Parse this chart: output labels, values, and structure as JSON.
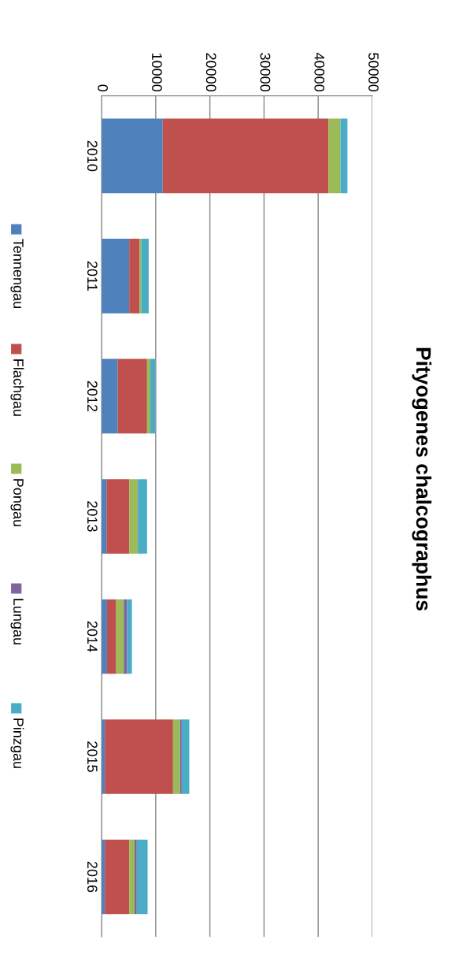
{
  "chart_data": {
    "type": "bar",
    "title": "Pityogenes chalcographus",
    "orientation": "horizontal",
    "stacked": true,
    "categories": [
      "2010",
      "2011",
      "2012",
      "2013",
      "2014",
      "2015",
      "2016"
    ],
    "series": [
      {
        "name": "Tennengau",
        "color": "#4f81bd",
        "values": [
          11300,
          5100,
          3000,
          900,
          1000,
          600,
          600
        ]
      },
      {
        "name": "Flachgau",
        "color": "#c0504d",
        "values": [
          30600,
          1900,
          5400,
          4200,
          1700,
          12600,
          4500
        ]
      },
      {
        "name": "Pongau",
        "color": "#9bbb59",
        "values": [
          2200,
          300,
          600,
          1600,
          1400,
          1300,
          1000
        ]
      },
      {
        "name": "Lungau",
        "color": "#8064a2",
        "values": [
          0,
          0,
          0,
          0,
          600,
          300,
          400
        ]
      },
      {
        "name": "Pinzgau",
        "color": "#4bacc6",
        "values": [
          1300,
          1400,
          900,
          1700,
          900,
          1400,
          2000
        ]
      }
    ],
    "xlim": [
      0,
      50000
    ],
    "xticks": [
      0,
      10000,
      20000,
      30000,
      40000,
      50000
    ],
    "grid": "x",
    "legend": "left"
  }
}
